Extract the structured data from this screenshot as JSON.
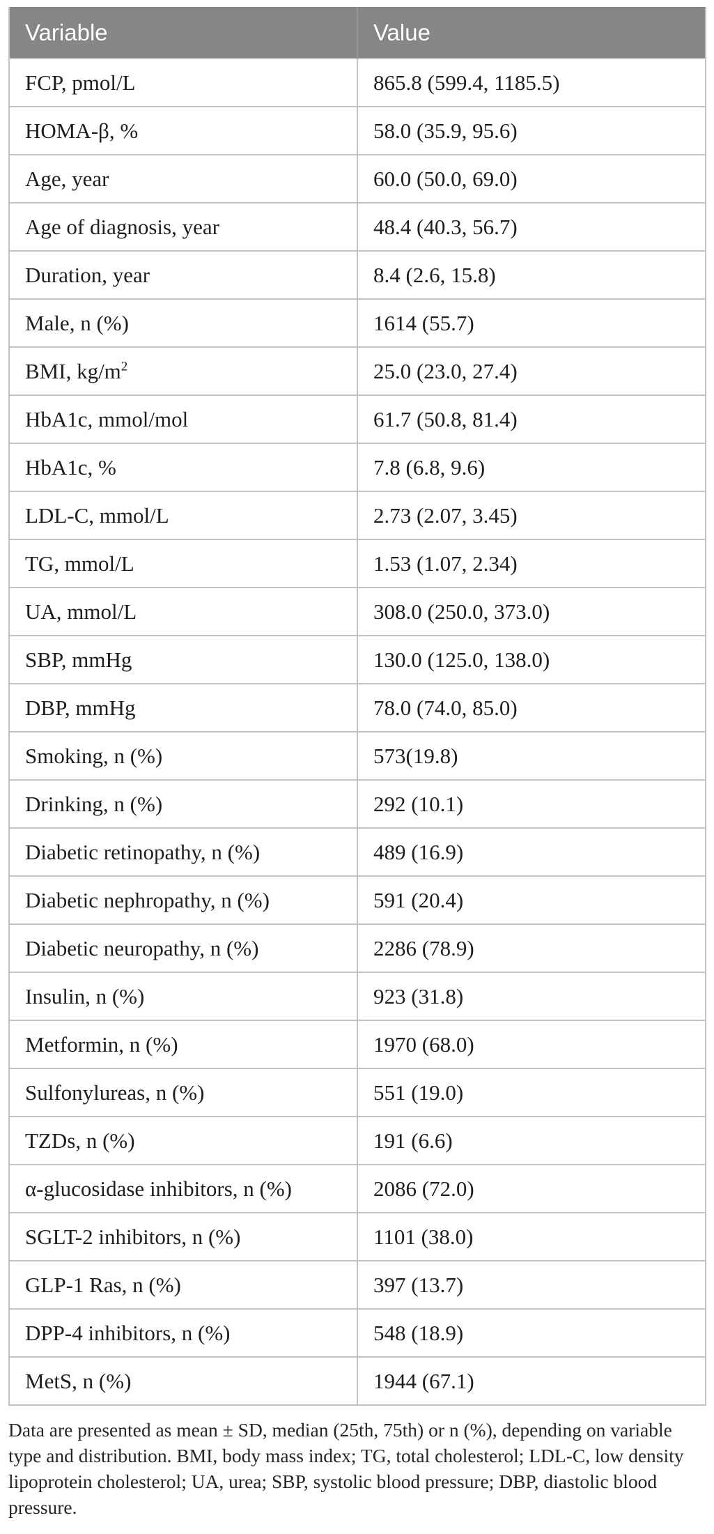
{
  "table": {
    "columns": [
      "Variable",
      "Value"
    ],
    "rows": [
      {
        "label": "FCP, pmol/L",
        "value": "865.8 (599.4, 1185.5)"
      },
      {
        "label": "HOMA-β, %",
        "value": "58.0 (35.9, 95.6)"
      },
      {
        "label": "Age, year",
        "value": "60.0 (50.0, 69.0)"
      },
      {
        "label": "Age of diagnosis, year",
        "value": "48.4 (40.3, 56.7)"
      },
      {
        "label": "Duration, year",
        "value": "8.4 (2.6, 15.8)"
      },
      {
        "label": "Male, n (%)",
        "value": "1614 (55.7)"
      },
      {
        "label": "BMI, kg/m",
        "label_sup": "2",
        "value": "25.0 (23.0, 27.4)"
      },
      {
        "label": "HbA1c, mmol/mol",
        "value": "61.7 (50.8, 81.4)"
      },
      {
        "label": "HbA1c, %",
        "value": "7.8 (6.8, 9.6)"
      },
      {
        "label": "LDL-C, mmol/L",
        "value": "2.73 (2.07, 3.45)"
      },
      {
        "label": "TG, mmol/L",
        "value": "1.53 (1.07, 2.34)"
      },
      {
        "label": "UA, mmol/L",
        "value": "308.0 (250.0, 373.0)"
      },
      {
        "label": "SBP, mmHg",
        "value": "130.0 (125.0, 138.0)"
      },
      {
        "label": "DBP, mmHg",
        "value": "78.0 (74.0, 85.0)"
      },
      {
        "label": "Smoking, n (%)",
        "value": "573(19.8)"
      },
      {
        "label": "Drinking, n (%)",
        "value": "292 (10.1)"
      },
      {
        "label": "Diabetic retinopathy, n (%)",
        "value": "489 (16.9)"
      },
      {
        "label": "Diabetic nephropathy, n (%)",
        "value": "591 (20.4)"
      },
      {
        "label": "Diabetic neuropathy, n (%)",
        "value": "2286 (78.9)"
      },
      {
        "label": "Insulin, n (%)",
        "value": "923 (31.8)"
      },
      {
        "label": "Metformin, n (%)",
        "value": "1970 (68.0)"
      },
      {
        "label": "Sulfonylureas, n (%)",
        "value": "551 (19.0)"
      },
      {
        "label": "TZDs, n (%)",
        "value": "191 (6.6)"
      },
      {
        "label": "α-glucosidase inhibitors, n (%)",
        "value": "2086 (72.0)"
      },
      {
        "label": "SGLT-2 inhibitors, n (%)",
        "value": "1101 (38.0)"
      },
      {
        "label": "GLP-1 Ras, n (%)",
        "value": "397 (13.7)"
      },
      {
        "label": "DPP-4 inhibitors, n (%)",
        "value": "548 (18.9)"
      },
      {
        "label": "MetS, n (%)",
        "value": "1944 (67.1)"
      }
    ]
  },
  "footnote": "Data are presented as mean ± SD, median (25th, 75th) or n (%), depending on variable type and distribution. BMI, body mass index; TG, total cholesterol; LDL-C, low density lipoprotein cholesterol; UA, urea; SBP, systolic blood pressure; DBP, diastolic blood pressure.",
  "colors": {
    "header_bg": "#868686",
    "header_text": "#ffffff",
    "body_text": "#1e1e1e",
    "border": "#c3c3c3"
  }
}
